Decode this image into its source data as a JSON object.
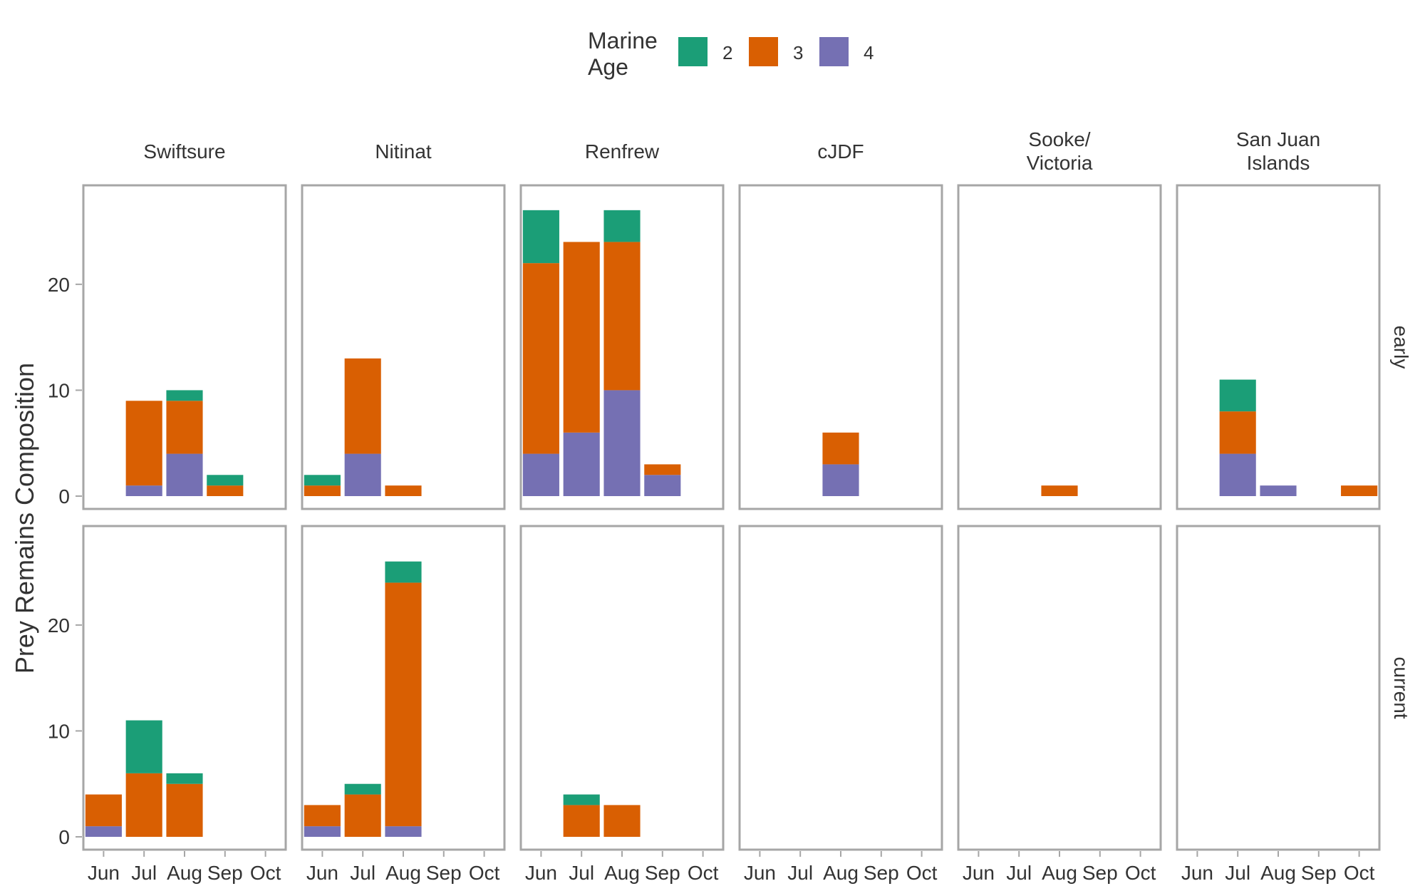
{
  "chart_data": {
    "type": "bar",
    "stacked": true,
    "ylabel": "Prey Remains Composition",
    "xlabel": "",
    "legend": {
      "title_lines": [
        "Marine",
        "Age"
      ],
      "placement": "top-center",
      "entries": [
        {
          "label": "2",
          "color": "#1B9E77"
        },
        {
          "label": "3",
          "color": "#D95F02"
        },
        {
          "label": "4",
          "color": "#7570B3"
        }
      ]
    },
    "ylim": [
      0,
      28
    ],
    "yticks": [
      "0",
      "10",
      "20"
    ],
    "categories": [
      "Jun",
      "Jul",
      "Aug",
      "Sep",
      "Oct"
    ],
    "columns": [
      {
        "label_lines": [
          "Swiftsure"
        ]
      },
      {
        "label_lines": [
          "Nitinat"
        ]
      },
      {
        "label_lines": [
          "Renfrew"
        ]
      },
      {
        "label_lines": [
          "cJDF"
        ]
      },
      {
        "label_lines": [
          "Sooke/",
          "Victoria"
        ]
      },
      {
        "label_lines": [
          "San Juan",
          "Islands"
        ]
      }
    ],
    "rows": [
      "early",
      "current"
    ],
    "series_order": [
      "4",
      "3",
      "2"
    ],
    "panels": [
      [
        {
          "2": [
            0,
            0,
            1,
            1,
            0
          ],
          "3": [
            0,
            8,
            5,
            1,
            0
          ],
          "4": [
            0,
            1,
            4,
            0,
            0
          ]
        },
        {
          "2": [
            1,
            0,
            0,
            0,
            0
          ],
          "3": [
            1,
            9,
            1,
            0,
            0
          ],
          "4": [
            0,
            4,
            0,
            0,
            0
          ]
        },
        {
          "2": [
            5,
            0,
            3,
            0,
            0
          ],
          "3": [
            18,
            18,
            14,
            1,
            0
          ],
          "4": [
            4,
            6,
            10,
            2,
            0
          ]
        },
        {
          "2": [
            0,
            0,
            0,
            0,
            0
          ],
          "3": [
            0,
            0,
            3,
            0,
            0
          ],
          "4": [
            0,
            0,
            3,
            0,
            0
          ]
        },
        {
          "2": [
            0,
            0,
            0,
            0,
            0
          ],
          "3": [
            0,
            0,
            1,
            0,
            0
          ],
          "4": [
            0,
            0,
            0,
            0,
            0
          ]
        },
        {
          "2": [
            0,
            3,
            0,
            0,
            0
          ],
          "3": [
            0,
            4,
            0,
            0,
            1
          ],
          "4": [
            0,
            4,
            1,
            0,
            0
          ]
        }
      ],
      [
        {
          "2": [
            0,
            5,
            1,
            0,
            0
          ],
          "3": [
            3,
            6,
            5,
            0,
            0
          ],
          "4": [
            1,
            0,
            0,
            0,
            0
          ]
        },
        {
          "2": [
            0,
            1,
            2,
            0,
            0
          ],
          "3": [
            2,
            4,
            23,
            0,
            0
          ],
          "4": [
            1,
            0,
            1,
            0,
            0
          ]
        },
        {
          "2": [
            0,
            1,
            0,
            0,
            0
          ],
          "3": [
            0,
            3,
            3,
            0,
            0
          ],
          "4": [
            0,
            0,
            0,
            0,
            0
          ]
        },
        {
          "2": [
            0,
            0,
            0,
            0,
            0
          ],
          "3": [
            0,
            0,
            0,
            0,
            0
          ],
          "4": [
            0,
            0,
            0,
            0,
            0
          ]
        },
        {
          "2": [
            0,
            0,
            0,
            0,
            0
          ],
          "3": [
            0,
            0,
            0,
            0,
            0
          ],
          "4": [
            0,
            0,
            0,
            0,
            0
          ]
        },
        {
          "2": [
            0,
            0,
            0,
            0,
            0
          ],
          "3": [
            0,
            0,
            0,
            0,
            0
          ],
          "4": [
            0,
            0,
            0,
            0,
            0
          ]
        }
      ]
    ]
  }
}
